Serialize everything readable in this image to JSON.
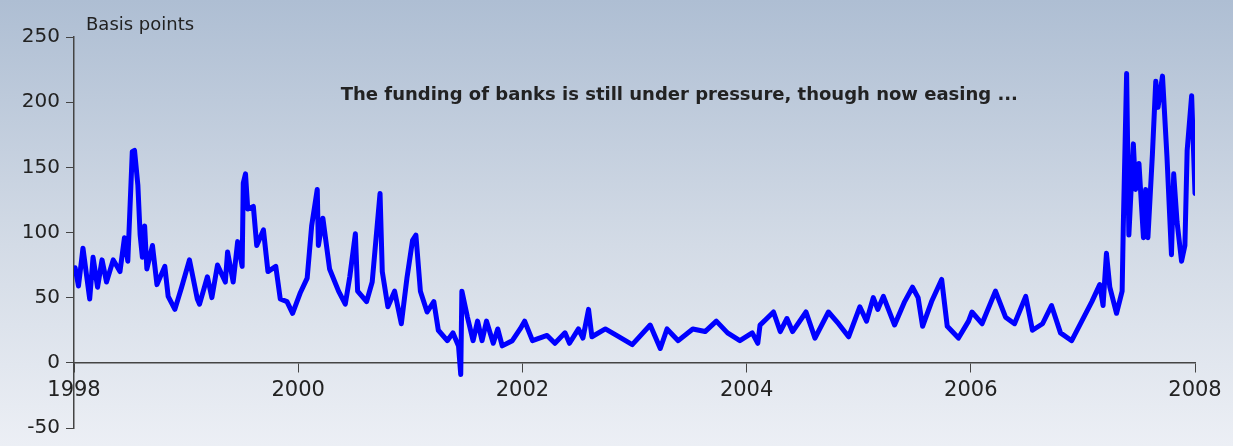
{
  "chart_data": {
    "type": "line",
    "ylabel": "Basis points",
    "annotations": [
      "The funding of banks is still under pressure, though now easing ..."
    ],
    "xlim": [
      1998,
      2008
    ],
    "xticks": [
      1998,
      2000,
      2002,
      2004,
      2006,
      2008
    ],
    "ylim": [
      -50,
      250
    ],
    "yticks": [
      -50,
      0,
      50,
      100,
      150,
      200,
      250
    ],
    "marker": "none",
    "line_style": "solid",
    "series": [
      {
        "color": "#0000ff",
        "x": [
          1998.01,
          1998.04,
          1998.08,
          1998.14,
          1998.17,
          1998.21,
          1998.25,
          1998.29,
          1998.35,
          1998.41,
          1998.45,
          1998.48,
          1998.52,
          1998.54,
          1998.57,
          1998.59,
          1998.61,
          1998.63,
          1998.65,
          1998.7,
          1998.74,
          1998.81,
          1998.84,
          1998.9,
          1998.96,
          1999.03,
          1999.1,
          1999.12,
          1999.19,
          1999.23,
          1999.28,
          1999.35,
          1999.37,
          1999.42,
          1999.46,
          1999.5,
          1999.51,
          1999.53,
          1999.55,
          1999.6,
          1999.63,
          1999.69,
          1999.73,
          1999.8,
          1999.84,
          1999.9,
          1999.95,
          2000.02,
          2000.08,
          2000.1,
          2000.12,
          2000.17,
          2000.18,
          2000.22,
          2000.28,
          2000.36,
          2000.42,
          2000.46,
          2000.51,
          2000.53,
          2000.61,
          2000.66,
          2000.73,
          2000.75,
          2000.8,
          2000.86,
          2000.92,
          2000.97,
          2001.02,
          2001.05,
          2001.09,
          2001.15,
          2001.21,
          2001.25,
          2001.33,
          2001.38,
          2001.43,
          2001.45,
          2001.46,
          2001.51,
          2001.56,
          2001.6,
          2001.64,
          2001.68,
          2001.74,
          2001.78,
          2001.82,
          2001.91,
          2001.98,
          2002.02,
          2002.09,
          2002.22,
          2002.29,
          2002.38,
          2002.42,
          2002.5,
          2002.54,
          2002.59,
          2002.62,
          2002.74,
          2002.84,
          2002.98,
          2003.14,
          2003.23,
          2003.29,
          2003.39,
          2003.52,
          2003.63,
          2003.73,
          2003.83,
          2003.94,
          2004.05,
          2004.1,
          2004.12,
          2004.24,
          2004.3,
          2004.36,
          2004.41,
          2004.53,
          2004.61,
          2004.73,
          2004.82,
          2004.91,
          2005.01,
          2005.07,
          2005.13,
          2005.17,
          2005.22,
          2005.32,
          2005.41,
          2005.48,
          2005.53,
          2005.57,
          2005.65,
          2005.74,
          2005.79,
          2005.89,
          2005.98,
          2006.01,
          2006.1,
          2006.22,
          2006.31,
          2006.39,
          2006.49,
          2006.55,
          2006.64,
          2006.72,
          2006.8,
          2006.9,
          2006.99,
          2007.08,
          2007.15,
          2007.18,
          2007.21,
          2007.24,
          2007.3,
          2007.35,
          2007.36,
          2007.39,
          2007.41,
          2007.45,
          2007.47,
          2007.5,
          2007.54,
          2007.56,
          2007.58,
          2007.62,
          2007.65,
          2007.67,
          2007.71,
          2007.75,
          2007.79,
          2007.81,
          2007.84,
          2007.88,
          2007.91,
          2007.93,
          2007.97,
          2008.0
        ],
        "values": [
          73,
          59,
          88,
          49,
          81,
          58,
          79,
          62,
          79,
          70,
          96,
          78,
          162,
          163,
          136,
          98,
          81,
          105,
          72,
          90,
          60,
          74,
          51,
          41,
          58,
          79,
          49,
          45,
          66,
          50,
          75,
          62,
          85,
          62,
          93,
          74,
          138,
          145,
          118,
          120,
          90,
          102,
          70,
          74,
          49,
          47,
          38,
          54,
          65,
          85,
          105,
          133,
          90,
          111,
          72,
          55,
          45,
          66,
          99,
          55,
          47,
          62,
          130,
          70,
          43,
          55,
          30,
          65,
          94,
          98,
          55,
          39,
          47,
          25,
          17,
          23,
          13,
          -9,
          55,
          35,
          17,
          32,
          17,
          32,
          15,
          26,
          13,
          17,
          26,
          32,
          17,
          21,
          15,
          23,
          15,
          26,
          19,
          41,
          20,
          26,
          21,
          14,
          29,
          11,
          26,
          17,
          26,
          24,
          32,
          23,
          17,
          23,
          15,
          29,
          39,
          24,
          34,
          24,
          39,
          19,
          39,
          30,
          20,
          43,
          32,
          50,
          41,
          51,
          29,
          47,
          58,
          50,
          28,
          47,
          64,
          28,
          19,
          32,
          39,
          30,
          55,
          35,
          30,
          51,
          25,
          30,
          44,
          23,
          17,
          32,
          47,
          60,
          44,
          84,
          58,
          38,
          55,
          103,
          222,
          98,
          168,
          133,
          153,
          96,
          133,
          96,
          160,
          216,
          196,
          220,
          158,
          83,
          145,
          108,
          78,
          90,
          163,
          205,
          130
        ]
      }
    ]
  }
}
